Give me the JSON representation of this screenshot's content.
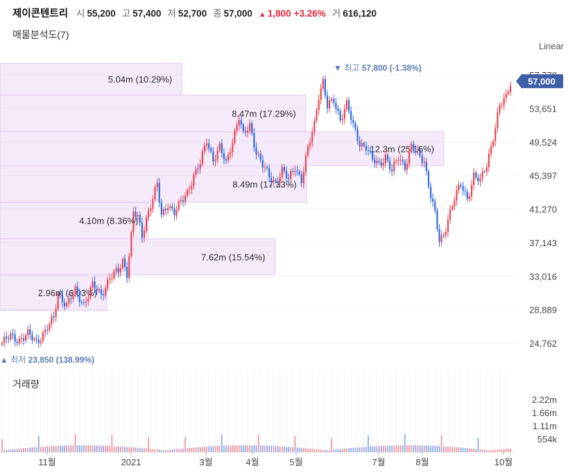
{
  "header": {
    "name": "제이콘텐트리",
    "open_label": "시",
    "open": "55,200",
    "high_label": "고",
    "high": "57,400",
    "low_label": "저",
    "low": "52,700",
    "close_label": "종",
    "close": "57,000",
    "change": "1,800",
    "change_pct": "+3.26%",
    "volume_label": "거",
    "volume": "616,120"
  },
  "scale_mode": "Linear",
  "chart_data": {
    "type": "candlestick",
    "title": "매물분석도(7)",
    "x_labels": [
      "11월",
      "2021",
      "3월",
      "4월",
      "5월",
      "7월",
      "8월",
      "10월"
    ],
    "y_ticks": [
      "57,779",
      "53,651",
      "49,524",
      "45,397",
      "41,270",
      "37,143",
      "33,016",
      "28,889",
      "24,762"
    ],
    "ylim": [
      21500,
      59500
    ],
    "last_price": "57,000",
    "high_marker": {
      "label": "최고",
      "value": "57,800",
      "pct": "(-1.38%)"
    },
    "low_marker": {
      "label": "최저",
      "value": "23,850",
      "pct": "(138.99%)"
    },
    "volume_profile": [
      {
        "label": "5.04m (10.29%)",
        "low": 55300,
        "high": 59200,
        "volume_m": 5.04
      },
      {
        "label": "8.47m (17.29%)",
        "low": 50800,
        "high": 55300,
        "volume_m": 8.47
      },
      {
        "label": "12.3m (25.16%)",
        "low": 46600,
        "high": 50800,
        "volume_m": 12.3
      },
      {
        "label": "8.49m (17.33%)",
        "low": 42100,
        "high": 46600,
        "volume_m": 8.49
      },
      {
        "label": "4.10m (8.36%)",
        "low": 37600,
        "high": 42100,
        "volume_m": 4.1
      },
      {
        "label": "7.62m (15.54%)",
        "low": 33200,
        "high": 37600,
        "volume_m": 7.62
      },
      {
        "label": "2.96m (6.03%)",
        "low": 28800,
        "high": 33200,
        "volume_m": 2.96
      }
    ],
    "volume_panel": {
      "title": "거래량",
      "y_ticks": [
        "2.22m",
        "1.66m",
        "1.11m",
        "554k"
      ]
    },
    "price_anchors": [
      [
        0,
        24800
      ],
      [
        4,
        25600
      ],
      [
        8,
        25200
      ],
      [
        12,
        25800
      ],
      [
        16,
        25000
      ],
      [
        20,
        26200
      ],
      [
        24,
        27800
      ],
      [
        26,
        31000
      ],
      [
        30,
        29400
      ],
      [
        34,
        31200
      ],
      [
        38,
        29600
      ],
      [
        42,
        31800
      ],
      [
        46,
        30800
      ],
      [
        50,
        32800
      ],
      [
        54,
        33600
      ],
      [
        56,
        35000
      ],
      [
        58,
        33400
      ],
      [
        60,
        38000
      ],
      [
        61,
        40800
      ],
      [
        63,
        40200
      ],
      [
        65,
        38000
      ],
      [
        67,
        40200
      ],
      [
        70,
        42600
      ],
      [
        72,
        44200
      ],
      [
        74,
        40400
      ],
      [
        77,
        42000
      ],
      [
        80,
        40800
      ],
      [
        83,
        42000
      ],
      [
        86,
        43400
      ],
      [
        89,
        45400
      ],
      [
        92,
        46800
      ],
      [
        95,
        49800
      ],
      [
        98,
        47400
      ],
      [
        101,
        48800
      ],
      [
        104,
        46800
      ],
      [
        107,
        49800
      ],
      [
        110,
        52600
      ],
      [
        112,
        50200
      ],
      [
        115,
        51600
      ],
      [
        118,
        48400
      ],
      [
        121,
        46600
      ],
      [
        124,
        45200
      ],
      [
        127,
        44600
      ],
      [
        130,
        46000
      ],
      [
        133,
        44800
      ],
      [
        136,
        46600
      ],
      [
        139,
        44800
      ],
      [
        142,
        48600
      ],
      [
        145,
        51800
      ],
      [
        147,
        55400
      ],
      [
        149,
        57000
      ],
      [
        151,
        53800
      ],
      [
        154,
        54600
      ],
      [
        157,
        52400
      ],
      [
        160,
        54200
      ],
      [
        163,
        51400
      ],
      [
        166,
        49400
      ],
      [
        169,
        49000
      ],
      [
        172,
        47200
      ],
      [
        175,
        46800
      ],
      [
        178,
        47800
      ],
      [
        181,
        45800
      ],
      [
        184,
        47600
      ],
      [
        187,
        46600
      ],
      [
        190,
        49000
      ],
      [
        193,
        48000
      ],
      [
        196,
        47200
      ],
      [
        199,
        43000
      ],
      [
        201,
        40600
      ],
      [
        203,
        37200
      ],
      [
        205,
        38000
      ],
      [
        207,
        40200
      ],
      [
        210,
        42600
      ],
      [
        213,
        44200
      ],
      [
        216,
        42600
      ],
      [
        219,
        45400
      ],
      [
        222,
        44600
      ],
      [
        225,
        46800
      ],
      [
        228,
        50200
      ],
      [
        231,
        53800
      ],
      [
        234,
        55000
      ],
      [
        236,
        57000
      ]
    ]
  }
}
